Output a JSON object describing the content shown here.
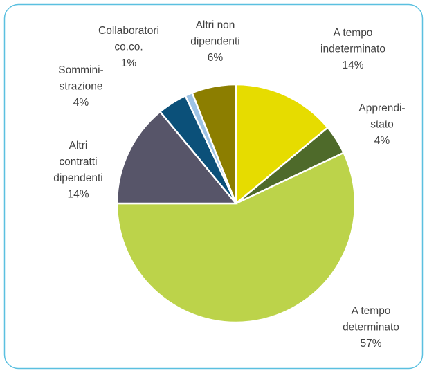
{
  "chart_data": {
    "type": "pie",
    "categories": [
      "A tempo\nindeterminato",
      "Apprendi-\nstato",
      "A tempo\ndeterminato",
      "Altri\ncontratti\ndipendenti",
      "Sommini-\nstrazione",
      "Collaboratori\nco.co.",
      "Altri non\ndipendenti"
    ],
    "values": [
      14,
      4,
      57,
      14,
      4,
      1,
      6
    ],
    "value_labels": [
      "14%",
      "4%",
      "57%",
      "14%",
      "4%",
      "1%",
      "6%"
    ],
    "colors": [
      "#e6dc00",
      "#4e6a2a",
      "#bcd34a",
      "#575569",
      "#0b5079",
      "#9dc3e6",
      "#8c7e00"
    ]
  }
}
